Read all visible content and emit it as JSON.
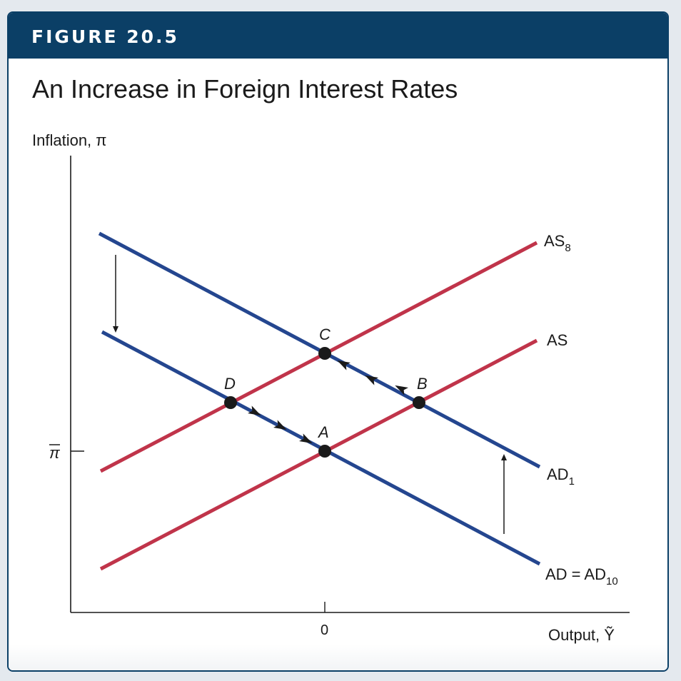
{
  "figure_label": "FIGURE 20.5",
  "title": "An Increase in Foreign Interest Rates",
  "y_axis_label": "Inflation, π",
  "x_axis_label": "Output, Ỹ",
  "y_tick_label": "π",
  "x_tick_label": "0",
  "curves": {
    "as8": {
      "label": "AS",
      "subscript": "8"
    },
    "as": {
      "label": "AS"
    },
    "ad1": {
      "label": "AD",
      "subscript": "1"
    },
    "ad": {
      "label": "AD = AD",
      "subscript": "10"
    }
  },
  "points": {
    "a": "A",
    "b": "B",
    "c": "C",
    "d": "D"
  },
  "colors": {
    "header": "#0b3f66",
    "ad_line": "#24468f",
    "as_line": "#c0344a"
  }
}
